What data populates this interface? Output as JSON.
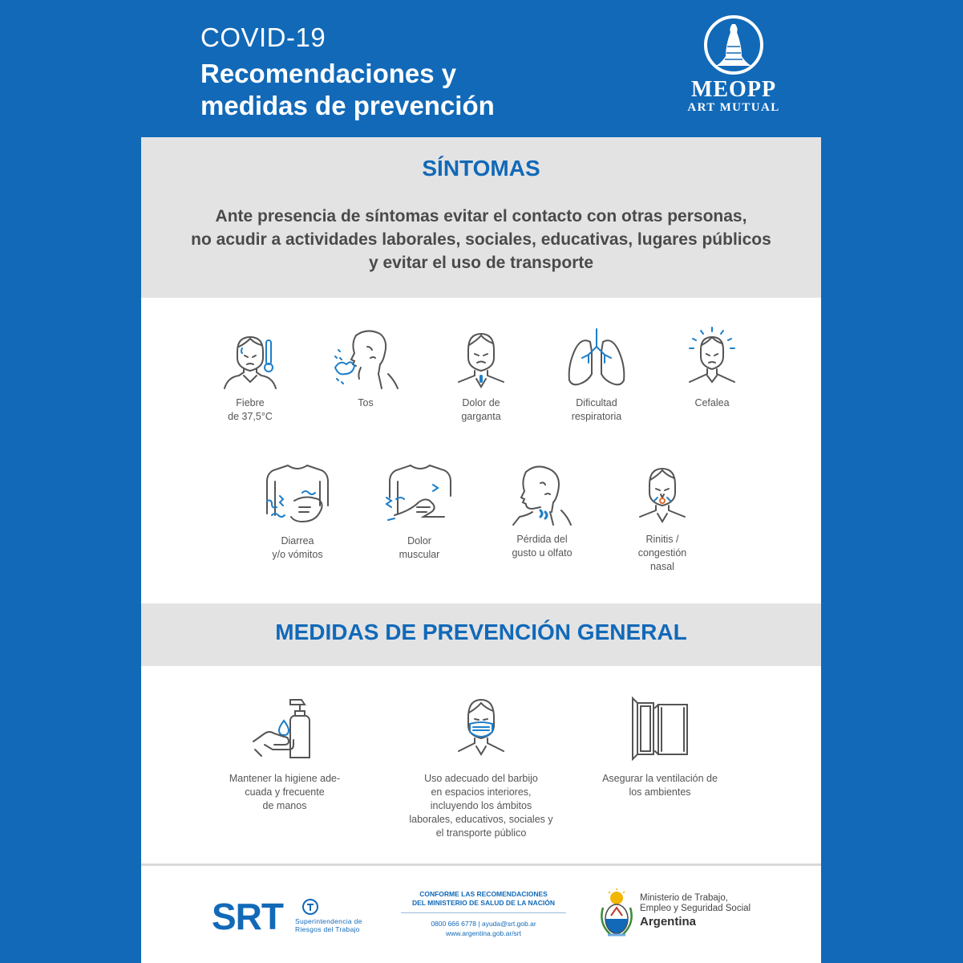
{
  "header": {
    "subtitle": "COVID-19",
    "title_lines": [
      "Recomendaciones y",
      "medidas de prevención"
    ]
  },
  "logo": {
    "name": "MEOPP",
    "subtitle": "ART MUTUAL"
  },
  "symptoms": {
    "title": "SÍNTOMAS",
    "description_lines": [
      "Ante presencia de síntomas evitar el contacto con otras personas,",
      "no acudir a actividades laborales, sociales, educativas, lugares públicos",
      "y evitar el uso de transporte"
    ],
    "items": [
      {
        "icon": "fever-thermometer-icon",
        "label_lines": [
          "Fiebre",
          "de 37,5°C"
        ]
      },
      {
        "icon": "cough-icon",
        "label_lines": [
          "Tos"
        ]
      },
      {
        "icon": "sore-throat-icon",
        "label_lines": [
          "Dolor de",
          "garganta"
        ]
      },
      {
        "icon": "lungs-icon",
        "label_lines": [
          "Dificultad",
          "respiratoria"
        ]
      },
      {
        "icon": "headache-icon",
        "label_lines": [
          "Cefalea"
        ]
      },
      {
        "icon": "stomach-ache-icon",
        "label_lines": [
          "Diarrea",
          "y/o vómitos"
        ]
      },
      {
        "icon": "muscle-pain-icon",
        "label_lines": [
          "Dolor",
          "muscular"
        ]
      },
      {
        "icon": "loss-of-taste-icon",
        "label_lines": [
          "Pérdida del",
          "gusto u olfato"
        ]
      },
      {
        "icon": "nasal-congestion-icon",
        "label_lines": [
          "Rinitis /",
          "congestión",
          "nasal"
        ]
      }
    ]
  },
  "prevention": {
    "title": "MEDIDAS DE PREVENCIÓN GENERAL",
    "items": [
      {
        "icon": "hand-sanitizer-icon",
        "label_lines": [
          "Mantener la higiene ade-",
          "cuada y frecuente",
          "de manos"
        ]
      },
      {
        "icon": "face-mask-icon",
        "label_lines": [
          "Uso adecuado del barbijo",
          "en espacios interiores,",
          "incluyendo los ámbitos",
          "laborales, educativos, sociales y",
          "el transporte público"
        ]
      },
      {
        "icon": "open-window-icon",
        "label_lines": [
          "Asegurar la ventilación de",
          "los ambientes"
        ]
      }
    ]
  },
  "footer": {
    "srt": {
      "word": "SRT",
      "sub_lines": [
        "Superintendencia de",
        "Riesgos del Trabajo"
      ]
    },
    "conforme": {
      "title_lines": [
        "CONFORME LAS RECOMENDACIONES",
        "DEL MINISTERIO DE SALUD DE LA NACIÓN"
      ],
      "contact_lines": [
        "0800 666 6778 | ayuda@srt.gob.ar",
        "www.argentina.gob.ar/srt"
      ]
    },
    "ministry": {
      "lines": [
        "Ministerio de Trabajo,",
        "Empleo y Seguridad Social"
      ],
      "country": "Argentina"
    }
  },
  "colors": {
    "brand_blue": "#1169b8",
    "band_gray": "#e3e3e4",
    "icon_gray": "#555555"
  }
}
